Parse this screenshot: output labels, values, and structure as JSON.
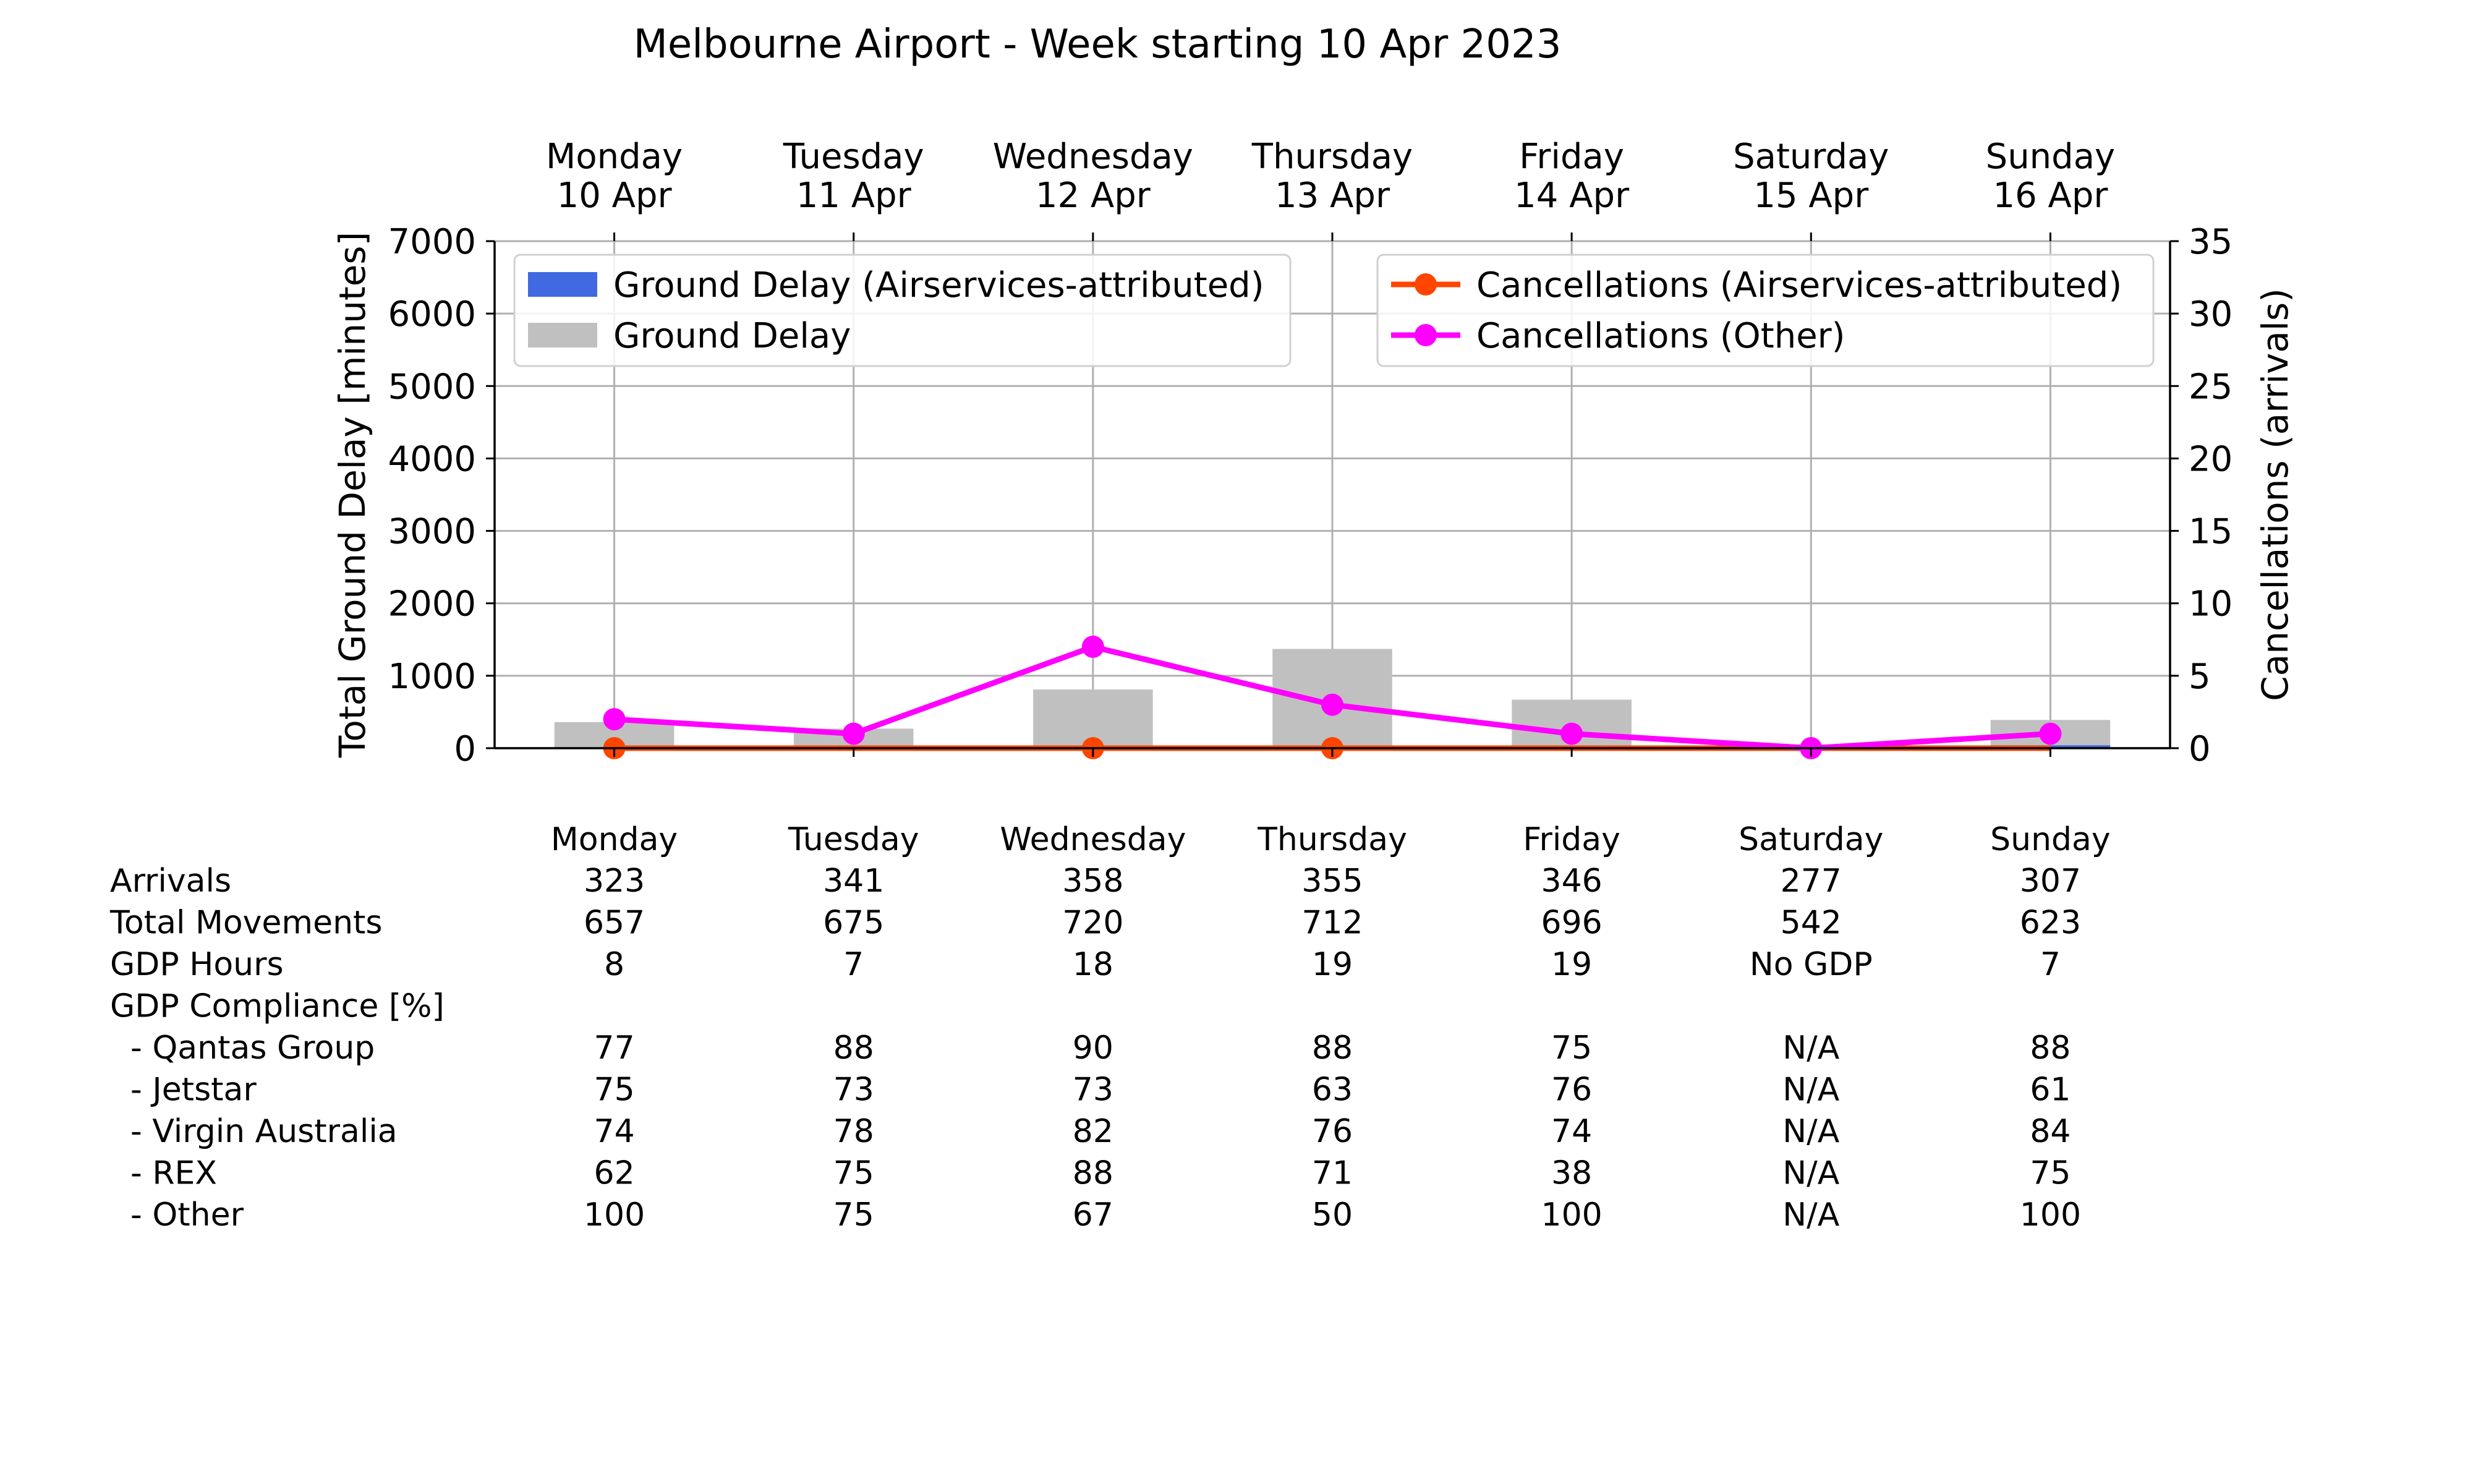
{
  "chart_data": {
    "type": "bar",
    "title": "Melbourne Airport - Week starting 10 Apr 2023",
    "categories": [
      {
        "day": "Monday",
        "date": "10 Apr"
      },
      {
        "day": "Tuesday",
        "date": "11 Apr"
      },
      {
        "day": "Wednesday",
        "date": "12 Apr"
      },
      {
        "day": "Thursday",
        "date": "13 Apr"
      },
      {
        "day": "Friday",
        "date": "14 Apr"
      },
      {
        "day": "Saturday",
        "date": "15 Apr"
      },
      {
        "day": "Sunday",
        "date": "16 Apr"
      }
    ],
    "ylabel": "Total Ground Delay [minutes]",
    "ylim": [
      0,
      7000
    ],
    "yticks": [
      "0",
      "1000",
      "2000",
      "3000",
      "4000",
      "5000",
      "6000",
      "7000"
    ],
    "y2label": "Cancellations (arrivals)",
    "y2lim": [
      0,
      35
    ],
    "y2ticks": [
      "0",
      "5",
      "10",
      "15",
      "20",
      "25",
      "30",
      "35"
    ],
    "grid": true,
    "bar_series": [
      {
        "name": "Ground Delay",
        "color": "#c0c0c0",
        "values": [
          360,
          270,
          810,
          1370,
          670,
          0,
          390
        ]
      },
      {
        "name": "Ground Delay (Airservices-attributed)",
        "color": "#4169e1",
        "values": [
          0,
          0,
          0,
          0,
          0,
          0,
          40
        ]
      }
    ],
    "line_series": [
      {
        "name": "Cancellations (Airservices-attributed)",
        "color": "#ff4500",
        "values": [
          0,
          0,
          0,
          0,
          0,
          0,
          0
        ],
        "markers": [
          0,
          2,
          3
        ]
      },
      {
        "name": "Cancellations (Other)",
        "color": "#ff00ff",
        "values": [
          2,
          1,
          7,
          3,
          1,
          0,
          1
        ],
        "markers": [
          0,
          1,
          2,
          3,
          4,
          5,
          6
        ]
      }
    ],
    "legends": [
      {
        "placement": "upper-left",
        "items": [
          {
            "label": "Ground Delay (Airservices-attributed)",
            "kind": "bar",
            "color": "#4169e1"
          },
          {
            "label": "Ground Delay",
            "kind": "bar",
            "color": "#c0c0c0"
          }
        ]
      },
      {
        "placement": "upper-right",
        "items": [
          {
            "label": "Cancellations (Airservices-attributed)",
            "kind": "line",
            "color": "#ff4500"
          },
          {
            "label": "Cancellations (Other)",
            "kind": "line",
            "color": "#ff00ff"
          }
        ]
      }
    ]
  },
  "table": {
    "columns": [
      "Monday",
      "Tuesday",
      "Wednesday",
      "Thursday",
      "Friday",
      "Saturday",
      "Sunday"
    ],
    "rows": [
      {
        "label": "Arrivals",
        "values": [
          "323",
          "341",
          "358",
          "355",
          "346",
          "277",
          "307"
        ]
      },
      {
        "label": "Total Movements",
        "values": [
          "657",
          "675",
          "720",
          "712",
          "696",
          "542",
          "623"
        ]
      },
      {
        "label": "GDP Hours",
        "values": [
          "8",
          "7",
          "18",
          "19",
          "19",
          "No GDP",
          "7"
        ]
      },
      {
        "label": "GDP Compliance [%]",
        "values": [
          "",
          "",
          "",
          "",
          "",
          "",
          ""
        ]
      },
      {
        "label": "  - Qantas Group",
        "values": [
          "77",
          "88",
          "90",
          "88",
          "75",
          "N/A",
          "88"
        ]
      },
      {
        "label": "  - Jetstar",
        "values": [
          "75",
          "73",
          "73",
          "63",
          "76",
          "N/A",
          "61"
        ]
      },
      {
        "label": "  - Virgin Australia",
        "values": [
          "74",
          "78",
          "82",
          "76",
          "74",
          "N/A",
          "84"
        ]
      },
      {
        "label": "  - REX",
        "values": [
          "62",
          "75",
          "88",
          "71",
          "38",
          "N/A",
          "75"
        ]
      },
      {
        "label": "  - Other",
        "values": [
          "100",
          "75",
          "67",
          "50",
          "100",
          "N/A",
          "100"
        ]
      }
    ]
  }
}
